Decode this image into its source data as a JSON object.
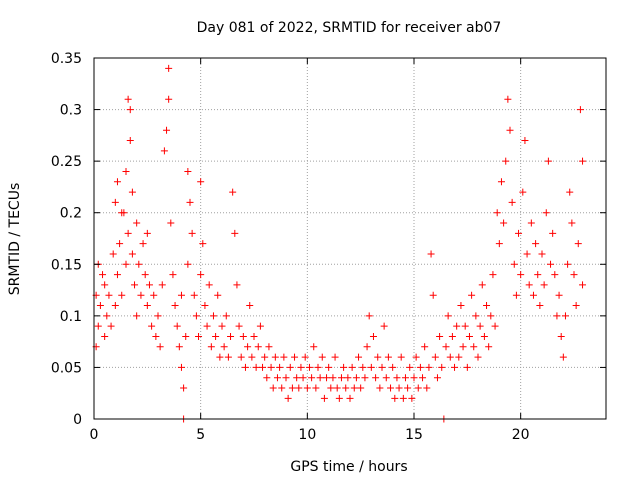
{
  "chart_data": {
    "type": "scatter",
    "title": "Day 081 of 2022, SRMTID for receiver ab07",
    "xlabel": "GPS time / hours",
    "ylabel": "SRMTID / TECUs",
    "xlim": [
      0,
      24
    ],
    "ylim": [
      0,
      0.35
    ],
    "grid": true,
    "marker": "+",
    "color": "#ff0000",
    "x_ticks": [
      0,
      5,
      10,
      15,
      20
    ],
    "x_tick_labels": [
      "0",
      "5",
      "10",
      "15",
      "20"
    ],
    "y_ticks": [
      0,
      0.05,
      0.1,
      0.15,
      0.2,
      0.25,
      0.3,
      0.35
    ],
    "y_tick_labels": [
      "0",
      "0.05",
      "0.1",
      "0.15",
      "0.2",
      "0.25",
      "0.3",
      "0.35"
    ],
    "series": [
      {
        "name": "SRMTID",
        "points": [
          [
            0.1,
            0.07
          ],
          [
            0.1,
            0.12
          ],
          [
            0.2,
            0.09
          ],
          [
            0.2,
            0.15
          ],
          [
            0.3,
            0.11
          ],
          [
            0.4,
            0.14
          ],
          [
            0.5,
            0.08
          ],
          [
            0.5,
            0.13
          ],
          [
            0.6,
            0.1
          ],
          [
            0.7,
            0.12
          ],
          [
            0.8,
            0.09
          ],
          [
            0.9,
            0.16
          ],
          [
            1.0,
            0.11
          ],
          [
            1.0,
            0.21
          ],
          [
            1.1,
            0.23
          ],
          [
            1.1,
            0.14
          ],
          [
            1.2,
            0.17
          ],
          [
            1.3,
            0.12
          ],
          [
            1.3,
            0.2
          ],
          [
            1.4,
            0.2
          ],
          [
            1.5,
            0.24
          ],
          [
            1.5,
            0.15
          ],
          [
            1.6,
            0.18
          ],
          [
            1.6,
            0.31
          ],
          [
            1.7,
            0.3
          ],
          [
            1.7,
            0.27
          ],
          [
            1.8,
            0.22
          ],
          [
            1.8,
            0.16
          ],
          [
            1.9,
            0.13
          ],
          [
            2.0,
            0.19
          ],
          [
            2.0,
            0.1
          ],
          [
            2.1,
            0.15
          ],
          [
            2.2,
            0.12
          ],
          [
            2.3,
            0.17
          ],
          [
            2.4,
            0.14
          ],
          [
            2.5,
            0.18
          ],
          [
            2.5,
            0.11
          ],
          [
            2.6,
            0.13
          ],
          [
            2.7,
            0.09
          ],
          [
            2.8,
            0.12
          ],
          [
            2.9,
            0.08
          ],
          [
            3.0,
            0.1
          ],
          [
            3.1,
            0.07
          ],
          [
            3.2,
            0.13
          ],
          [
            3.3,
            0.26
          ],
          [
            3.4,
            0.28
          ],
          [
            3.5,
            0.34
          ],
          [
            3.5,
            0.31
          ],
          [
            3.6,
            0.19
          ],
          [
            3.7,
            0.14
          ],
          [
            3.8,
            0.11
          ],
          [
            3.9,
            0.09
          ],
          [
            4.0,
            0.07
          ],
          [
            4.1,
            0.05
          ],
          [
            4.1,
            0.12
          ],
          [
            4.2,
            0.03
          ],
          [
            4.2,
            0.0
          ],
          [
            4.3,
            0.08
          ],
          [
            4.4,
            0.15
          ],
          [
            4.4,
            0.24
          ],
          [
            4.5,
            0.21
          ],
          [
            4.6,
            0.18
          ],
          [
            4.7,
            0.12
          ],
          [
            4.8,
            0.1
          ],
          [
            4.9,
            0.08
          ],
          [
            5.0,
            0.14
          ],
          [
            5.0,
            0.23
          ],
          [
            5.1,
            0.17
          ],
          [
            5.2,
            0.11
          ],
          [
            5.3,
            0.09
          ],
          [
            5.4,
            0.13
          ],
          [
            5.5,
            0.07
          ],
          [
            5.6,
            0.1
          ],
          [
            5.7,
            0.08
          ],
          [
            5.8,
            0.12
          ],
          [
            5.9,
            0.06
          ],
          [
            6.0,
            0.09
          ],
          [
            6.1,
            0.07
          ],
          [
            6.2,
            0.1
          ],
          [
            6.3,
            0.06
          ],
          [
            6.4,
            0.08
          ],
          [
            6.5,
            0.22
          ],
          [
            6.6,
            0.18
          ],
          [
            6.7,
            0.13
          ],
          [
            6.8,
            0.09
          ],
          [
            6.9,
            0.06
          ],
          [
            7.0,
            0.08
          ],
          [
            7.1,
            0.05
          ],
          [
            7.2,
            0.07
          ],
          [
            7.3,
            0.11
          ],
          [
            7.4,
            0.06
          ],
          [
            7.5,
            0.08
          ],
          [
            7.6,
            0.05
          ],
          [
            7.7,
            0.07
          ],
          [
            7.8,
            0.09
          ],
          [
            7.9,
            0.05
          ],
          [
            8.0,
            0.06
          ],
          [
            8.1,
            0.04
          ],
          [
            8.2,
            0.07
          ],
          [
            8.3,
            0.05
          ],
          [
            8.4,
            0.03
          ],
          [
            8.5,
            0.06
          ],
          [
            8.6,
            0.04
          ],
          [
            8.7,
            0.05
          ],
          [
            8.8,
            0.03
          ],
          [
            8.9,
            0.06
          ],
          [
            9.0,
            0.04
          ],
          [
            9.1,
            0.02
          ],
          [
            9.2,
            0.05
          ],
          [
            9.3,
            0.03
          ],
          [
            9.4,
            0.06
          ],
          [
            9.5,
            0.04
          ],
          [
            9.6,
            0.03
          ],
          [
            9.7,
            0.05
          ],
          [
            9.8,
            0.04
          ],
          [
            9.9,
            0.06
          ],
          [
            10.0,
            0.03
          ],
          [
            10.1,
            0.05
          ],
          [
            10.2,
            0.04
          ],
          [
            10.3,
            0.07
          ],
          [
            10.4,
            0.03
          ],
          [
            10.5,
            0.05
          ],
          [
            10.6,
            0.04
          ],
          [
            10.7,
            0.06
          ],
          [
            10.8,
            0.02
          ],
          [
            10.9,
            0.04
          ],
          [
            11.0,
            0.05
          ],
          [
            11.1,
            0.03
          ],
          [
            11.2,
            0.04
          ],
          [
            11.3,
            0.06
          ],
          [
            11.4,
            0.03
          ],
          [
            11.5,
            0.02
          ],
          [
            11.6,
            0.04
          ],
          [
            11.7,
            0.05
          ],
          [
            11.8,
            0.03
          ],
          [
            11.9,
            0.04
          ],
          [
            12.0,
            0.02
          ],
          [
            12.1,
            0.05
          ],
          [
            12.2,
            0.03
          ],
          [
            12.3,
            0.04
          ],
          [
            12.4,
            0.06
          ],
          [
            12.5,
            0.03
          ],
          [
            12.6,
            0.05
          ],
          [
            12.7,
            0.04
          ],
          [
            12.8,
            0.07
          ],
          [
            12.9,
            0.1
          ],
          [
            13.0,
            0.05
          ],
          [
            13.1,
            0.08
          ],
          [
            13.2,
            0.04
          ],
          [
            13.3,
            0.06
          ],
          [
            13.4,
            0.03
          ],
          [
            13.5,
            0.05
          ],
          [
            13.6,
            0.09
          ],
          [
            13.7,
            0.04
          ],
          [
            13.8,
            0.06
          ],
          [
            13.9,
            0.03
          ],
          [
            14.0,
            0.05
          ],
          [
            14.1,
            0.02
          ],
          [
            14.2,
            0.04
          ],
          [
            14.3,
            0.03
          ],
          [
            14.4,
            0.06
          ],
          [
            14.5,
            0.02
          ],
          [
            14.6,
            0.04
          ],
          [
            14.7,
            0.03
          ],
          [
            14.8,
            0.05
          ],
          [
            14.9,
            0.02
          ],
          [
            15.0,
            0.04
          ],
          [
            15.1,
            0.06
          ],
          [
            15.2,
            0.03
          ],
          [
            15.3,
            0.05
          ],
          [
            15.4,
            0.04
          ],
          [
            15.5,
            0.07
          ],
          [
            15.6,
            0.03
          ],
          [
            15.7,
            0.05
          ],
          [
            15.8,
            0.16
          ],
          [
            15.9,
            0.12
          ],
          [
            16.0,
            0.06
          ],
          [
            16.1,
            0.04
          ],
          [
            16.2,
            0.08
          ],
          [
            16.3,
            0.05
          ],
          [
            16.4,
            0.0
          ],
          [
            16.5,
            0.07
          ],
          [
            16.6,
            0.1
          ],
          [
            16.7,
            0.06
          ],
          [
            16.8,
            0.08
          ],
          [
            16.9,
            0.05
          ],
          [
            17.0,
            0.09
          ],
          [
            17.1,
            0.06
          ],
          [
            17.2,
            0.11
          ],
          [
            17.3,
            0.07
          ],
          [
            17.4,
            0.09
          ],
          [
            17.5,
            0.05
          ],
          [
            17.6,
            0.08
          ],
          [
            17.7,
            0.12
          ],
          [
            17.8,
            0.07
          ],
          [
            17.9,
            0.1
          ],
          [
            18.0,
            0.06
          ],
          [
            18.1,
            0.09
          ],
          [
            18.2,
            0.13
          ],
          [
            18.3,
            0.08
          ],
          [
            18.4,
            0.11
          ],
          [
            18.5,
            0.07
          ],
          [
            18.6,
            0.1
          ],
          [
            18.7,
            0.14
          ],
          [
            18.8,
            0.09
          ],
          [
            18.9,
            0.2
          ],
          [
            19.0,
            0.17
          ],
          [
            19.1,
            0.23
          ],
          [
            19.2,
            0.19
          ],
          [
            19.3,
            0.25
          ],
          [
            19.4,
            0.31
          ],
          [
            19.5,
            0.28
          ],
          [
            19.6,
            0.21
          ],
          [
            19.7,
            0.15
          ],
          [
            19.8,
            0.12
          ],
          [
            19.9,
            0.18
          ],
          [
            20.0,
            0.14
          ],
          [
            20.1,
            0.22
          ],
          [
            20.2,
            0.27
          ],
          [
            20.3,
            0.16
          ],
          [
            20.4,
            0.13
          ],
          [
            20.5,
            0.19
          ],
          [
            20.6,
            0.12
          ],
          [
            20.7,
            0.17
          ],
          [
            20.8,
            0.14
          ],
          [
            20.9,
            0.11
          ],
          [
            21.0,
            0.16
          ],
          [
            21.1,
            0.13
          ],
          [
            21.2,
            0.2
          ],
          [
            21.3,
            0.25
          ],
          [
            21.4,
            0.15
          ],
          [
            21.5,
            0.18
          ],
          [
            21.6,
            0.14
          ],
          [
            21.7,
            0.1
          ],
          [
            21.8,
            0.12
          ],
          [
            21.9,
            0.08
          ],
          [
            22.0,
            0.06
          ],
          [
            22.1,
            0.1
          ],
          [
            22.2,
            0.15
          ],
          [
            22.3,
            0.22
          ],
          [
            22.4,
            0.19
          ],
          [
            22.5,
            0.14
          ],
          [
            22.6,
            0.11
          ],
          [
            22.7,
            0.17
          ],
          [
            22.8,
            0.3
          ],
          [
            22.9,
            0.25
          ],
          [
            22.9,
            0.13
          ]
        ]
      }
    ]
  }
}
